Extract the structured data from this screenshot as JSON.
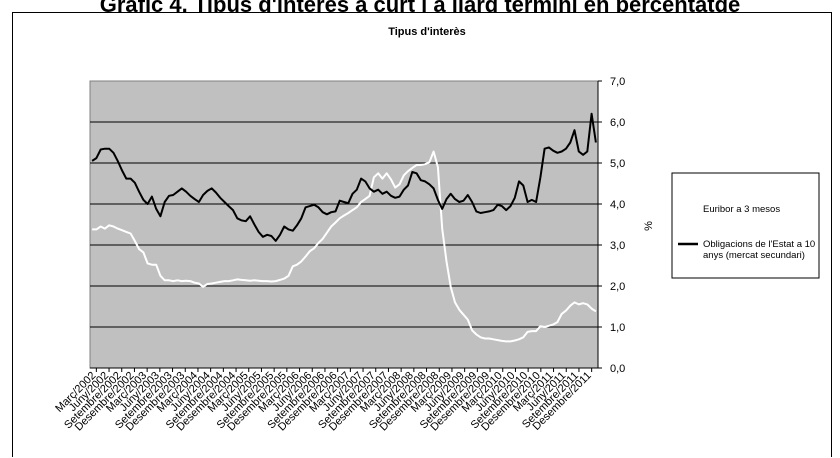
{
  "page_heading": "Gràfic 4. Tipus d'interès a curt i a llarg termini en percentatge",
  "chart_data": {
    "type": "line",
    "title": "Tipus d'interès",
    "xlabel": "",
    "ylabel": "%",
    "ylim": [
      0,
      7
    ],
    "y_ticks": [
      "0,0",
      "1,0",
      "2,0",
      "3,0",
      "4,0",
      "5,0",
      "6,0",
      "7,0"
    ],
    "grid": true,
    "legend_position": "right",
    "colors": {
      "plot_background": "#c0c0c0",
      "euribor": "#ffffff",
      "bonds": "#000000"
    },
    "x_tick_labels": [
      "Març/2002",
      "Juny/2002",
      "Setembre/2002",
      "Desembre/2002",
      "Març/2003",
      "Juny/2003",
      "Setembre/2003",
      "Desembre/2003",
      "Març/2004",
      "Juny/2004",
      "Setembre/2004",
      "Desembre/2004",
      "Març/2005",
      "Juny/2005",
      "Setembre/2005",
      "Desembre/2005",
      "Març/2006",
      "Juny/2006",
      "Setembre/2006",
      "Desembre/2006",
      "Març/2007",
      "Juny/2007",
      "Setembre/2007",
      "Desembre/2007",
      "Març/2008",
      "Juny/2008",
      "Setembre/2008",
      "Desembre/2008",
      "Març/2009",
      "Juny/2009",
      "Setembre/2009",
      "Desembre/2009",
      "Març/2010",
      "Juny/2010",
      "Setembre/2010",
      "Desembre/2010",
      "Març/2011",
      "Juny/2011",
      "Setembre/2011",
      "Desembre/2011"
    ],
    "series": [
      {
        "name": "Euribor a 3 mesos",
        "values": [
          3.38,
          3.38,
          3.45,
          3.4,
          3.48,
          3.45,
          3.4,
          3.36,
          3.32,
          3.28,
          3.1,
          2.9,
          2.82,
          2.55,
          2.52,
          2.52,
          2.25,
          2.14,
          2.14,
          2.12,
          2.14,
          2.12,
          2.13,
          2.12,
          2.08,
          2.06,
          1.98,
          2.05,
          2.06,
          2.08,
          2.1,
          2.12,
          2.12,
          2.14,
          2.16,
          2.15,
          2.14,
          2.13,
          2.14,
          2.13,
          2.12,
          2.12,
          2.11,
          2.12,
          2.15,
          2.18,
          2.25,
          2.48,
          2.52,
          2.6,
          2.72,
          2.85,
          2.92,
          3.05,
          3.15,
          3.3,
          3.45,
          3.55,
          3.65,
          3.72,
          3.78,
          3.85,
          3.92,
          4.05,
          4.12,
          4.2,
          4.65,
          4.75,
          4.62,
          4.75,
          4.6,
          4.4,
          4.48,
          4.7,
          4.8,
          4.88,
          4.95,
          4.95,
          4.97,
          5.02,
          5.28,
          4.9,
          3.4,
          2.6,
          1.98,
          1.6,
          1.42,
          1.3,
          1.18,
          0.92,
          0.82,
          0.75,
          0.72,
          0.72,
          0.7,
          0.68,
          0.66,
          0.65,
          0.65,
          0.67,
          0.7,
          0.75,
          0.88,
          0.9,
          0.9,
          1.02,
          1.0,
          1.03,
          1.06,
          1.12,
          1.32,
          1.4,
          1.52,
          1.6,
          1.55,
          1.58,
          1.55,
          1.45,
          1.38
        ]
      },
      {
        "name": "Obligacions de l'Estat a 10 anys (mercat secundari)",
        "values": [
          5.05,
          5.12,
          5.33,
          5.35,
          5.35,
          5.25,
          5.05,
          4.82,
          4.62,
          4.62,
          4.52,
          4.3,
          4.1,
          4.0,
          4.18,
          3.88,
          3.7,
          4.05,
          4.2,
          4.22,
          4.3,
          4.38,
          4.3,
          4.2,
          4.12,
          4.05,
          4.22,
          4.32,
          4.38,
          4.28,
          4.15,
          4.05,
          3.95,
          3.85,
          3.65,
          3.6,
          3.58,
          3.7,
          3.5,
          3.32,
          3.2,
          3.25,
          3.22,
          3.1,
          3.25,
          3.45,
          3.38,
          3.35,
          3.48,
          3.65,
          3.92,
          3.95,
          3.98,
          3.92,
          3.8,
          3.75,
          3.8,
          3.82,
          4.08,
          4.05,
          4.02,
          4.25,
          4.35,
          4.62,
          4.55,
          4.38,
          4.3,
          4.35,
          4.25,
          4.3,
          4.2,
          4.15,
          4.18,
          4.35,
          4.45,
          4.78,
          4.75,
          4.58,
          4.55,
          4.48,
          4.38,
          4.1,
          3.88,
          4.12,
          4.25,
          4.12,
          4.05,
          4.08,
          4.22,
          4.05,
          3.82,
          3.78,
          3.8,
          3.82,
          3.85,
          3.98,
          3.95,
          3.85,
          3.95,
          4.15,
          4.55,
          4.45,
          4.05,
          4.1,
          4.05,
          4.65,
          5.35,
          5.38,
          5.3,
          5.25,
          5.28,
          5.35,
          5.5,
          5.8,
          5.28,
          5.2,
          5.28,
          6.2,
          5.5
        ]
      }
    ]
  }
}
